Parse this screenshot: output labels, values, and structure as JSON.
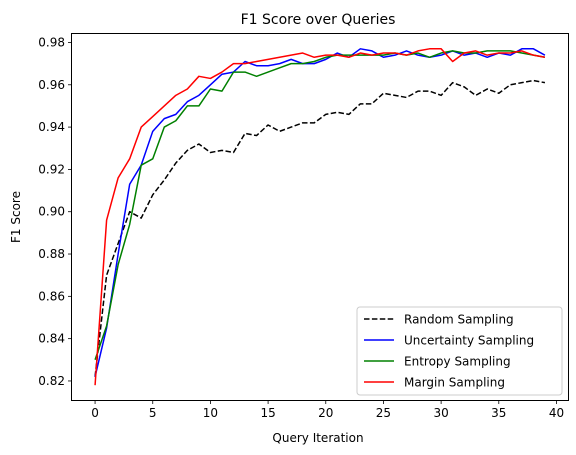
{
  "chart_data": {
    "type": "line",
    "title": "F1 Score over Queries",
    "xlabel": "Query Iteration",
    "ylabel": "F1 Score",
    "xlim": [
      -2,
      41
    ],
    "ylim": [
      0.811,
      0.984
    ],
    "x_ticks": [
      0,
      5,
      10,
      15,
      20,
      25,
      30,
      35,
      40
    ],
    "y_ticks": [
      0.82,
      0.84,
      0.86,
      0.88,
      0.9,
      0.92,
      0.94,
      0.96,
      0.98
    ],
    "y_tick_labels": [
      "0.82",
      "0.84",
      "0.86",
      "0.88",
      "0.90",
      "0.92",
      "0.94",
      "0.96",
      "0.98"
    ],
    "grid": false,
    "legend_position": "lower-right",
    "x": [
      0,
      1,
      2,
      3,
      4,
      5,
      6,
      7,
      8,
      9,
      10,
      11,
      12,
      13,
      14,
      15,
      16,
      17,
      18,
      19,
      20,
      21,
      22,
      23,
      24,
      25,
      26,
      27,
      28,
      29,
      30,
      31,
      32,
      33,
      34,
      35,
      36,
      37,
      38,
      39
    ],
    "series": [
      {
        "name": "Random Sampling",
        "color": "#000000",
        "dash": "dashed",
        "values": [
          0.822,
          0.87,
          0.885,
          0.9,
          0.897,
          0.908,
          0.915,
          0.923,
          0.929,
          0.932,
          0.928,
          0.929,
          0.928,
          0.937,
          0.936,
          0.941,
          0.938,
          0.94,
          0.942,
          0.942,
          0.946,
          0.947,
          0.946,
          0.951,
          0.951,
          0.956,
          0.955,
          0.954,
          0.957,
          0.957,
          0.955,
          0.961,
          0.959,
          0.955,
          0.958,
          0.956,
          0.96,
          0.961,
          0.962,
          0.961
        ]
      },
      {
        "name": "Uncertainty Sampling",
        "color": "#0000ff",
        "dash": "solid",
        "values": [
          0.822,
          0.845,
          0.88,
          0.913,
          0.922,
          0.938,
          0.944,
          0.946,
          0.952,
          0.955,
          0.96,
          0.965,
          0.966,
          0.971,
          0.969,
          0.969,
          0.97,
          0.972,
          0.97,
          0.97,
          0.972,
          0.975,
          0.973,
          0.977,
          0.976,
          0.973,
          0.974,
          0.976,
          0.974,
          0.973,
          0.974,
          0.976,
          0.974,
          0.975,
          0.973,
          0.975,
          0.974,
          0.977,
          0.977,
          0.974
        ]
      },
      {
        "name": "Entropy Sampling",
        "color": "#008000",
        "dash": "solid",
        "values": [
          0.83,
          0.846,
          0.875,
          0.894,
          0.922,
          0.925,
          0.94,
          0.943,
          0.95,
          0.95,
          0.958,
          0.957,
          0.966,
          0.966,
          0.964,
          0.966,
          0.968,
          0.97,
          0.97,
          0.971,
          0.973,
          0.974,
          0.974,
          0.974,
          0.974,
          0.974,
          0.975,
          0.974,
          0.975,
          0.973,
          0.975,
          0.976,
          0.975,
          0.975,
          0.976,
          0.976,
          0.976,
          0.975,
          0.974,
          0.973
        ]
      },
      {
        "name": "Margin Sampling",
        "color": "#ff0000",
        "dash": "solid",
        "values": [
          0.818,
          0.896,
          0.916,
          0.925,
          0.94,
          0.945,
          0.95,
          0.955,
          0.958,
          0.964,
          0.963,
          0.966,
          0.97,
          0.97,
          0.971,
          0.972,
          0.973,
          0.974,
          0.975,
          0.973,
          0.974,
          0.974,
          0.973,
          0.975,
          0.974,
          0.975,
          0.975,
          0.974,
          0.976,
          0.977,
          0.977,
          0.971,
          0.975,
          0.976,
          0.974,
          0.975,
          0.975,
          0.976,
          0.974,
          0.973
        ]
      }
    ]
  }
}
